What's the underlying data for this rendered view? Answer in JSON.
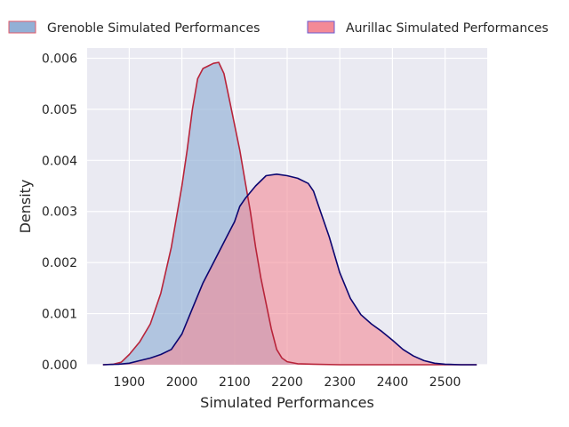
{
  "chart_data": {
    "type": "area",
    "xlabel": "Simulated Performances",
    "ylabel": "Density",
    "xlim": [
      1820,
      2580
    ],
    "ylim": [
      0,
      0.0062
    ],
    "xticks": [
      1900,
      2000,
      2100,
      2200,
      2300,
      2400,
      2500
    ],
    "yticks": [
      0,
      0.001,
      0.002,
      0.003,
      0.004,
      0.005,
      0.006
    ],
    "ytick_labels": [
      "0.000",
      "0.001",
      "0.002",
      "0.003",
      "0.004",
      "0.005",
      "0.006"
    ],
    "grid": true,
    "legend_position": "top",
    "series": [
      {
        "name": "Grenoble Simulated Performances",
        "fill": "#92b0d6",
        "fill_opacity": 0.65,
        "line": "#b8243a",
        "legend_edge": "#e05a6a",
        "points": [
          [
            1850,
            0.0
          ],
          [
            1870,
            1e-05
          ],
          [
            1885,
            5e-05
          ],
          [
            1900,
            0.0002
          ],
          [
            1920,
            0.00045
          ],
          [
            1940,
            0.0008
          ],
          [
            1960,
            0.0014
          ],
          [
            1980,
            0.0023
          ],
          [
            2000,
            0.0035
          ],
          [
            2010,
            0.0042
          ],
          [
            2020,
            0.005
          ],
          [
            2030,
            0.0056
          ],
          [
            2040,
            0.0058
          ],
          [
            2050,
            0.00585
          ],
          [
            2060,
            0.0059
          ],
          [
            2070,
            0.00592
          ],
          [
            2080,
            0.0057
          ],
          [
            2090,
            0.0052
          ],
          [
            2100,
            0.0047
          ],
          [
            2110,
            0.0042
          ],
          [
            2120,
            0.0036
          ],
          [
            2130,
            0.003
          ],
          [
            2140,
            0.0023
          ],
          [
            2150,
            0.0017
          ],
          [
            2160,
            0.0012
          ],
          [
            2170,
            0.0007
          ],
          [
            2180,
            0.0003
          ],
          [
            2190,
            0.00013
          ],
          [
            2200,
            6e-05
          ],
          [
            2220,
            2e-05
          ],
          [
            2250,
            1e-05
          ],
          [
            2300,
            0.0
          ],
          [
            2560,
            0.0
          ]
        ]
      },
      {
        "name": "Aurillac Simulated Performances",
        "fill": "#f48a96",
        "fill_opacity": 0.6,
        "line": "#0c0670",
        "legend_edge": "#6a5ad0",
        "points": [
          [
            1850,
            0.0
          ],
          [
            1880,
            1e-05
          ],
          [
            1900,
            3e-05
          ],
          [
            1920,
            8e-05
          ],
          [
            1940,
            0.00013
          ],
          [
            1960,
            0.0002
          ],
          [
            1980,
            0.0003
          ],
          [
            2000,
            0.0006
          ],
          [
            2020,
            0.0011
          ],
          [
            2040,
            0.0016
          ],
          [
            2060,
            0.002
          ],
          [
            2080,
            0.0024
          ],
          [
            2100,
            0.0028
          ],
          [
            2110,
            0.0031
          ],
          [
            2120,
            0.00325
          ],
          [
            2140,
            0.0035
          ],
          [
            2160,
            0.0037
          ],
          [
            2180,
            0.00373
          ],
          [
            2200,
            0.0037
          ],
          [
            2220,
            0.00365
          ],
          [
            2240,
            0.00355
          ],
          [
            2250,
            0.0034
          ],
          [
            2260,
            0.0031
          ],
          [
            2280,
            0.0025
          ],
          [
            2300,
            0.0018
          ],
          [
            2320,
            0.0013
          ],
          [
            2340,
            0.00098
          ],
          [
            2360,
            0.0008
          ],
          [
            2380,
            0.00065
          ],
          [
            2400,
            0.00048
          ],
          [
            2420,
            0.0003
          ],
          [
            2440,
            0.00017
          ],
          [
            2460,
            8e-05
          ],
          [
            2480,
            3e-05
          ],
          [
            2500,
            1e-05
          ],
          [
            2530,
            0.0
          ],
          [
            2560,
            0.0
          ]
        ]
      }
    ]
  }
}
